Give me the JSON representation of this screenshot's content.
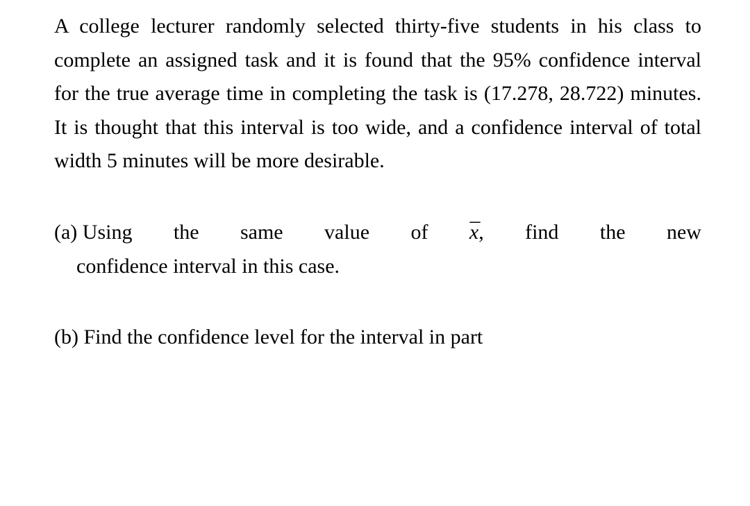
{
  "colors": {
    "text": "#000000",
    "background": "#ffffff"
  },
  "typography": {
    "font_family": "Times New Roman",
    "font_size_pt": 22,
    "line_height": 1.62
  },
  "problem_statement": "A college lecturer randomly selected thirty-five students in his class to complete an assigned task and it is found that the 95% confidence interval for the true average time in completing the task is  (17.278, 28.722) minutes. It is thought that this interval is too wide, and a confidence interval of total width 5 minutes will be more desirable.",
  "parts": {
    "a": {
      "label": "(a)",
      "line1_words": [
        "(a) Using",
        "the",
        "same",
        "value",
        "of",
        "x̄,",
        "find",
        "the",
        "new"
      ],
      "line1_prefix": "(a) Using  the  same  value  of  ",
      "line1_var": "x",
      "line1_suffix": ",  find  the  new",
      "line2": "confidence interval in this case."
    },
    "b": {
      "text": "(b) Find the confidence level for the interval in part"
    }
  }
}
